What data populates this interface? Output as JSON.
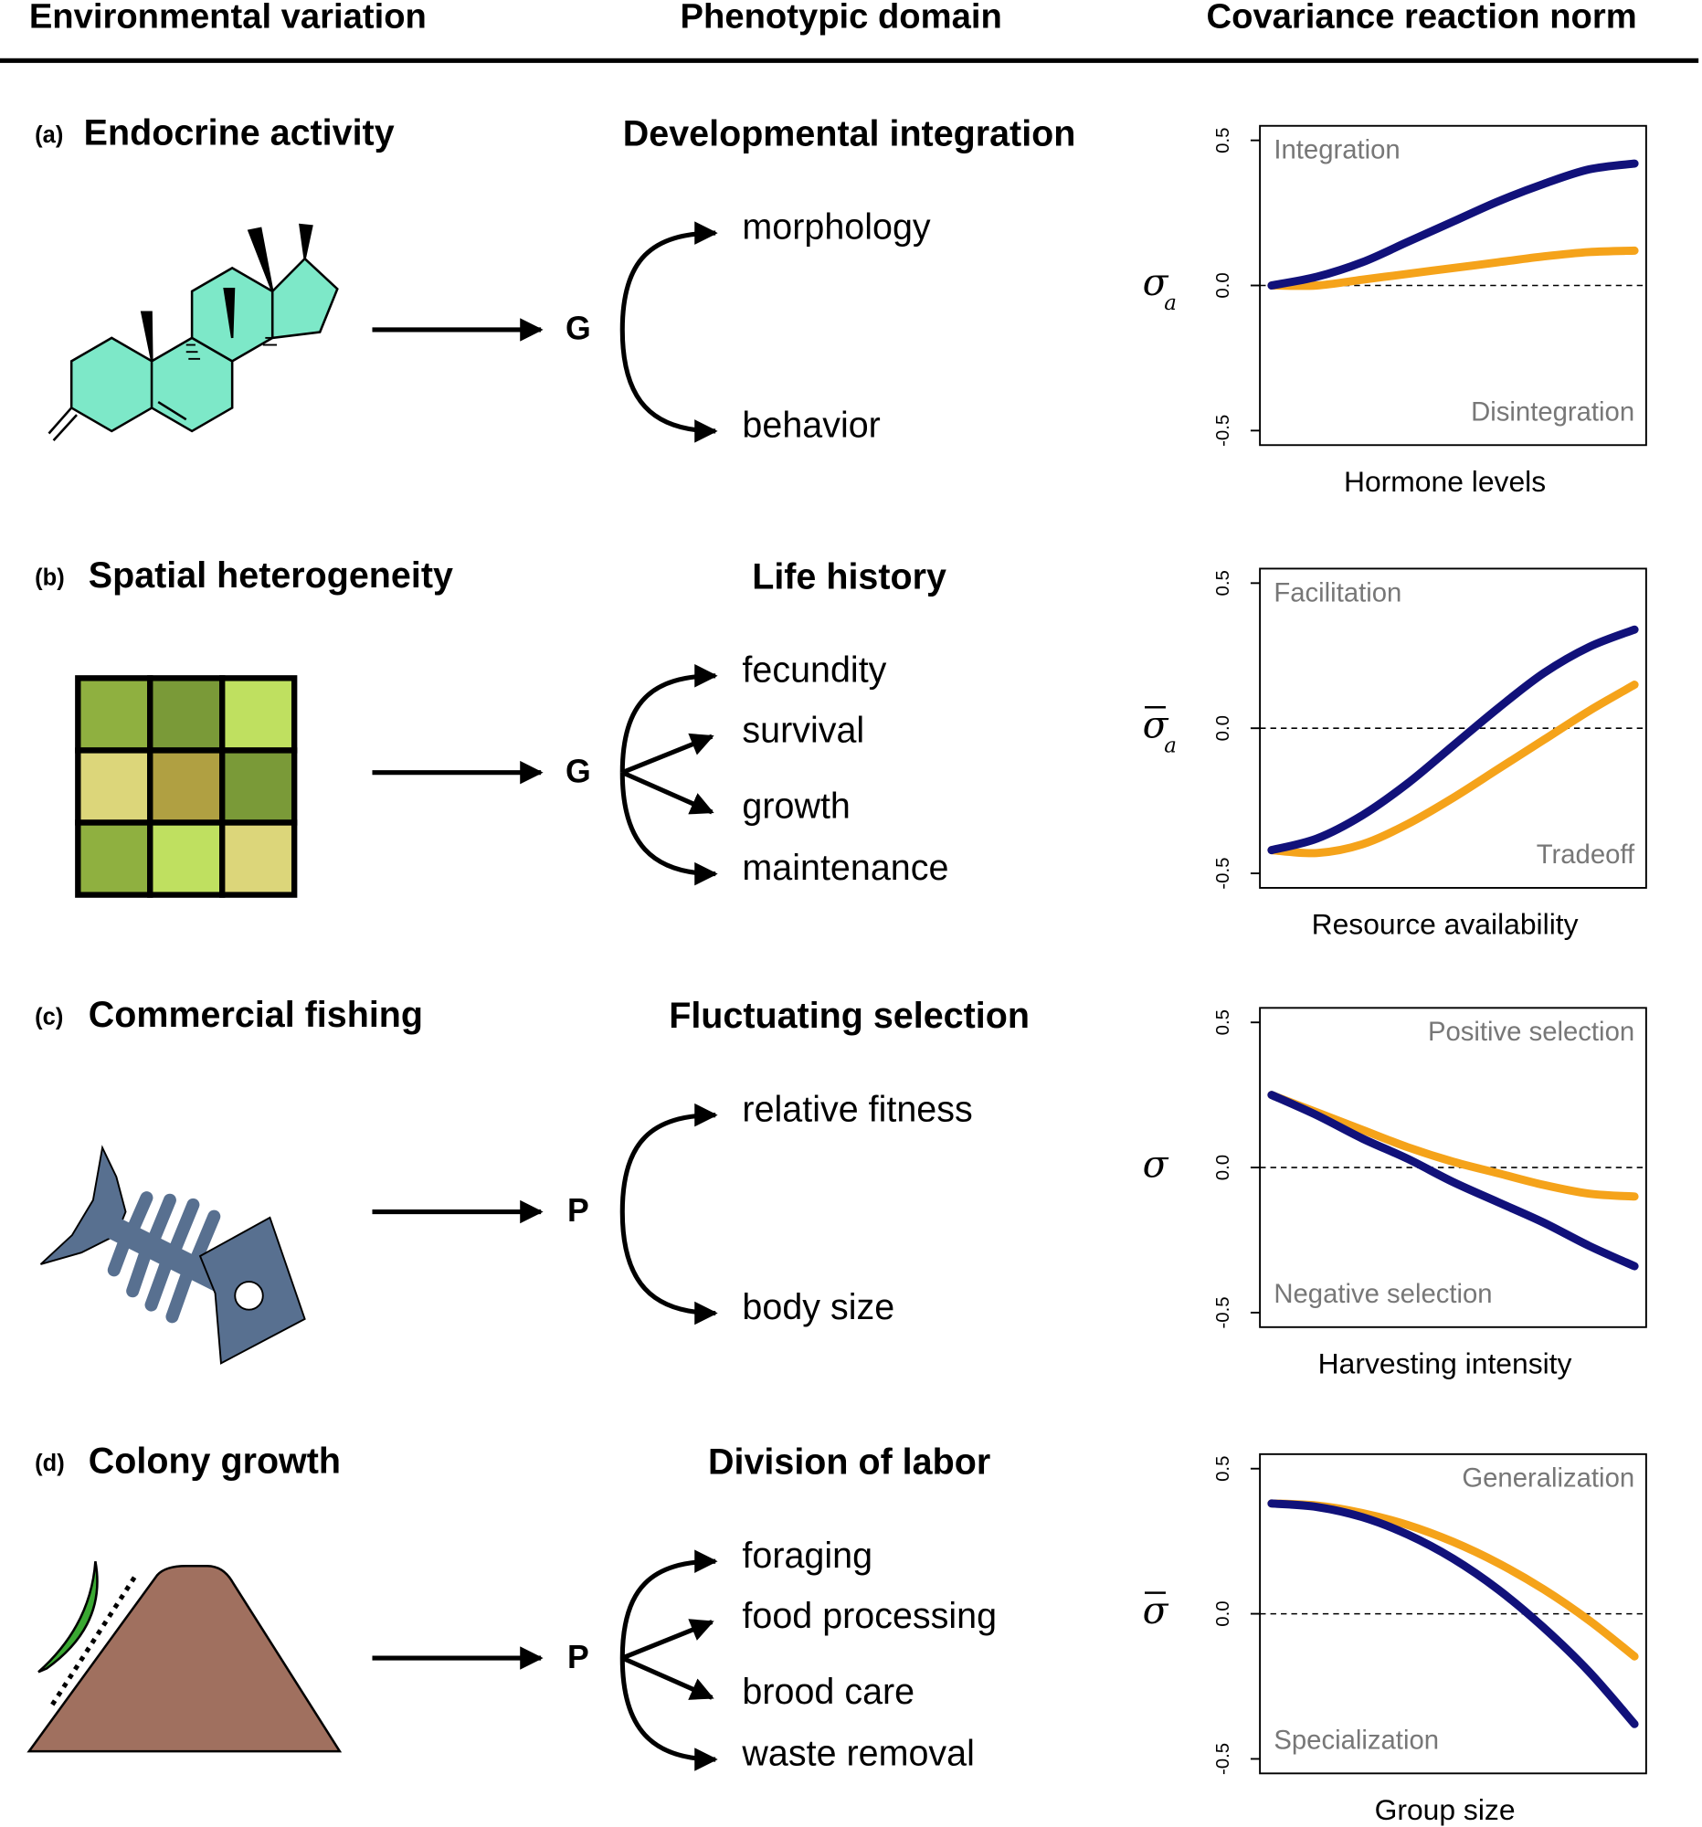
{
  "headers": [
    "Environmental variation",
    "Phenotypic domain",
    "Covariance reaction norm"
  ],
  "panels": [
    {
      "label": "(a)",
      "environment": "Endocrine activity",
      "domain": "Developmental integration",
      "matrix": "G",
      "traits": [
        "morphology",
        "behavior"
      ]
    },
    {
      "label": "(b)",
      "environment": "Spatial heterogeneity",
      "domain": "Life history",
      "matrix": "G",
      "traits": [
        "fecundity",
        "survival",
        "growth",
        "maintenance"
      ]
    },
    {
      "label": "(c)",
      "environment": "Commercial fishing",
      "domain": "Fluctuating selection",
      "matrix": "P",
      "traits": [
        "relative fitness",
        "body size"
      ]
    },
    {
      "label": "(d)",
      "environment": "Colony growth",
      "domain": "Division of labor",
      "matrix": "P",
      "traits": [
        "foraging",
        "food processing",
        "brood care",
        "waste removal"
      ]
    }
  ],
  "chart_data": [
    {
      "type": "line",
      "ylabel": "σ",
      "ylabel_sub": "a",
      "ylabel_bar": false,
      "xlabel": "Hormone levels",
      "ylim": [
        -0.55,
        0.55
      ],
      "yticks": [
        0.5,
        {
          "value": 0,
          "label": "0.0"
        },
        -0.5
      ],
      "hline": 0,
      "annotations": [
        {
          "text": "Integration",
          "corner": "upper left"
        },
        {
          "text": "Disintegration",
          "corner": "lower right"
        }
      ],
      "series": [
        {
          "color": "#f5a31a",
          "values": [
            0,
            0,
            0.02,
            0.04,
            0.06,
            0.08,
            0.1,
            0.115,
            0.12
          ]
        },
        {
          "color": "#11117a",
          "values": [
            0,
            0.03,
            0.08,
            0.15,
            0.22,
            0.29,
            0.35,
            0.4,
            0.42
          ]
        }
      ]
    },
    {
      "type": "line",
      "ylabel": "σ",
      "ylabel_sub": "a",
      "ylabel_bar": true,
      "xlabel": "Resource availability",
      "ylim": [
        -0.55,
        0.55
      ],
      "yticks": [
        0.5,
        {
          "value": 0,
          "label": "0.0"
        },
        -0.5
      ],
      "hline": 0,
      "annotations": [
        {
          "text": "Facilitation",
          "corner": "upper left"
        },
        {
          "text": "Tradeoff",
          "corner": "lower right"
        }
      ],
      "series": [
        {
          "color": "#f5a31a",
          "values": [
            -0.42,
            -0.43,
            -0.4,
            -0.33,
            -0.24,
            -0.14,
            -0.04,
            0.06,
            0.15
          ]
        },
        {
          "color": "#11117a",
          "values": [
            -0.42,
            -0.38,
            -0.3,
            -0.19,
            -0.06,
            0.07,
            0.19,
            0.28,
            0.34
          ]
        }
      ]
    },
    {
      "type": "line",
      "ylabel": "σ",
      "ylabel_bar": false,
      "xlabel": "Harvesting intensity",
      "ylim": [
        -0.55,
        0.55
      ],
      "yticks": [
        0.5,
        {
          "value": 0,
          "label": "0.0"
        },
        -0.5
      ],
      "hline": 0,
      "annotations": [
        {
          "text": "Positive selection",
          "corner": "upper right"
        },
        {
          "text": "Negative selection",
          "corner": "lower left"
        }
      ],
      "series": [
        {
          "color": "#f5a31a",
          "values": [
            0.25,
            0.19,
            0.13,
            0.07,
            0.02,
            -0.02,
            -0.06,
            -0.09,
            -0.1
          ]
        },
        {
          "color": "#11117a",
          "values": [
            0.25,
            0.18,
            0.1,
            0.03,
            -0.05,
            -0.12,
            -0.19,
            -0.27,
            -0.34
          ]
        }
      ]
    },
    {
      "type": "line",
      "ylabel": "σ",
      "ylabel_bar": true,
      "xlabel": "Group size",
      "ylim": [
        -0.55,
        0.55
      ],
      "yticks": [
        0.5,
        {
          "value": 0,
          "label": "0.0"
        },
        -0.5
      ],
      "hline": 0,
      "annotations": [
        {
          "text": "Generalization",
          "corner": "upper right"
        },
        {
          "text": "Specialization",
          "corner": "lower left"
        }
      ],
      "series": [
        {
          "color": "#f5a31a",
          "values": [
            0.38,
            0.373,
            0.347,
            0.306,
            0.248,
            0.174,
            0.084,
            -0.023,
            -0.147
          ]
        },
        {
          "color": "#11117a",
          "values": [
            0.38,
            0.368,
            0.333,
            0.273,
            0.19,
            0.083,
            -0.048,
            -0.2,
            -0.38
          ]
        }
      ]
    }
  ]
}
